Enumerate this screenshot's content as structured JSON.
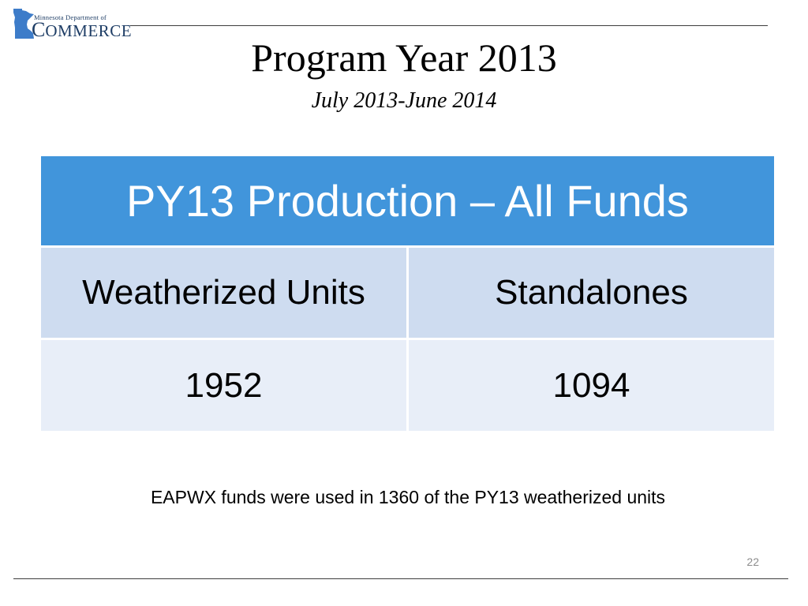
{
  "logo": {
    "line1": "Minnesota Department of",
    "line2_big": "C",
    "line2_small": "OMMERCE",
    "map_color": "#3d7cc9"
  },
  "title": "Program Year 2013",
  "subtitle": "July 2013-June 2014",
  "table": {
    "header": "PY13 Production – All Funds",
    "header_color": "#4195db",
    "columns": [
      "Weatherized Units",
      "Standalones"
    ],
    "values": [
      "1952",
      "1094"
    ]
  },
  "note": "EAPWX funds were used in 1360 of the PY13 weatherized units",
  "page_number": "22"
}
